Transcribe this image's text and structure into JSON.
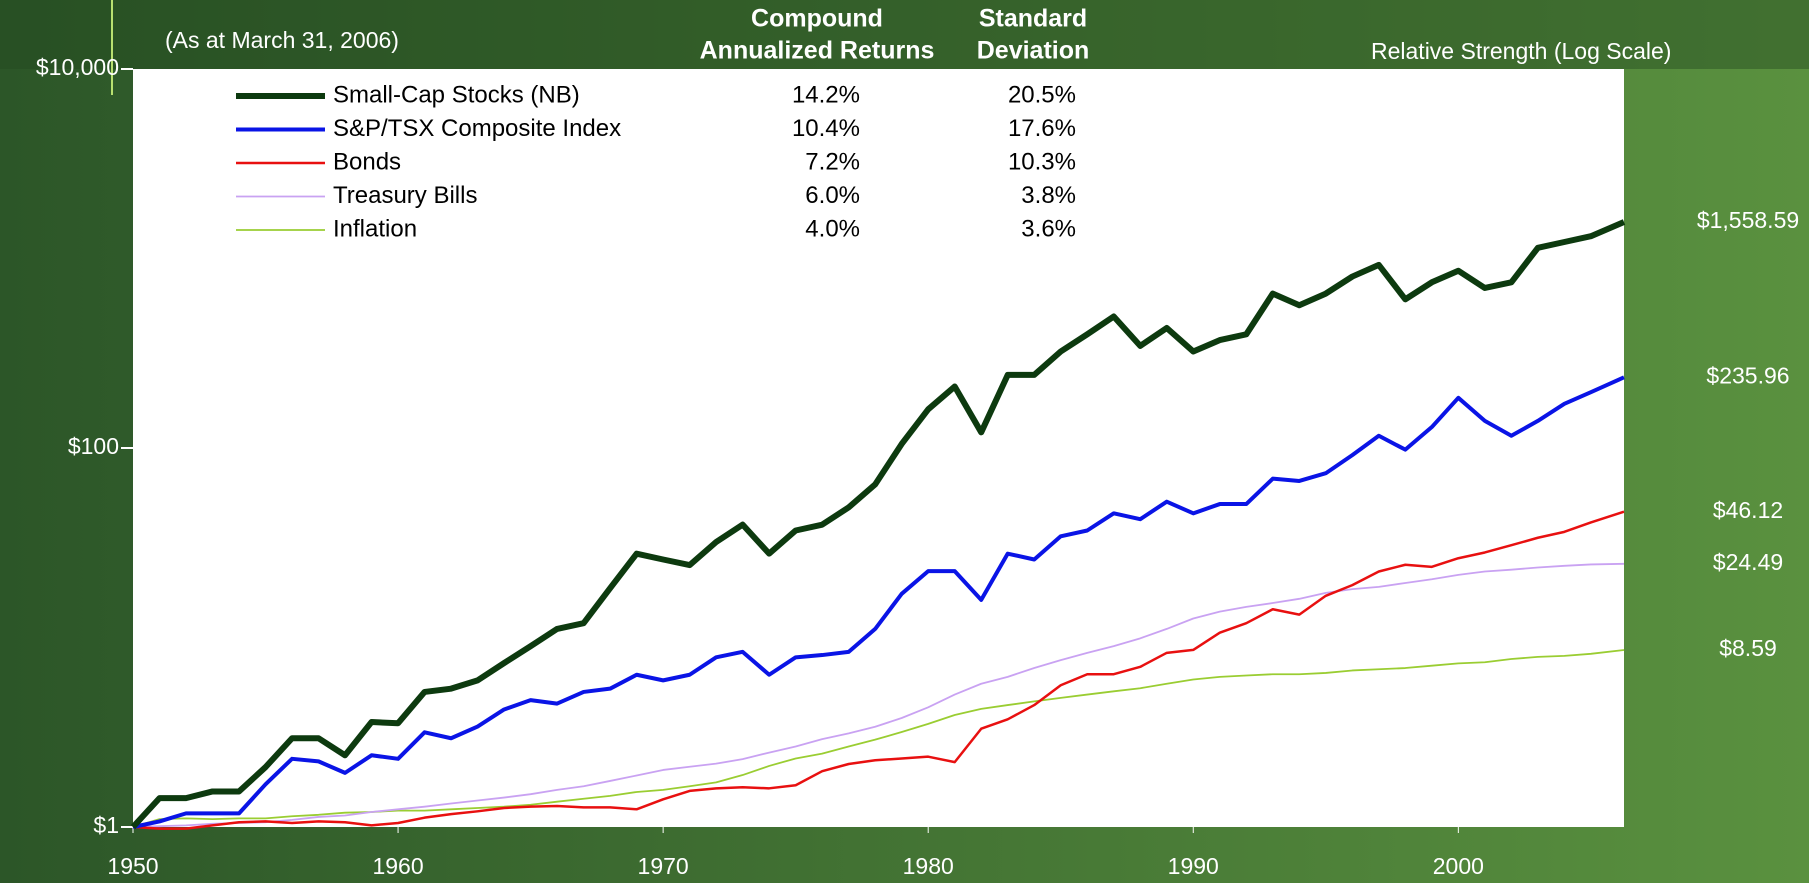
{
  "chart_data": {
    "type": "line",
    "log_scale": true,
    "subtitle": "(As at March 31, 2006)",
    "axis_note": "Relative Strength (Log Scale)",
    "return_header": [
      "Compound",
      "Annualized Returns"
    ],
    "std_header": [
      "Standard",
      "Deviation"
    ],
    "xlim": [
      1950,
      2006.25
    ],
    "xticks": [
      1950,
      1960,
      1970,
      1980,
      1990,
      2000
    ],
    "ylim": [
      1,
      10000
    ],
    "yticks": [
      {
        "value": 1,
        "label": "$1"
      },
      {
        "value": 100,
        "label": "$100"
      },
      {
        "value": 10000,
        "label": "$10,000"
      }
    ],
    "x": [
      1950,
      1951,
      1952,
      1953,
      1954,
      1955,
      1956,
      1957,
      1958,
      1959,
      1960,
      1961,
      1962,
      1963,
      1964,
      1965,
      1966,
      1967,
      1968,
      1969,
      1970,
      1971,
      1972,
      1973,
      1974,
      1975,
      1976,
      1977,
      1978,
      1979,
      1980,
      1981,
      1982,
      1983,
      1984,
      1985,
      1986,
      1987,
      1988,
      1989,
      1990,
      1991,
      1992,
      1993,
      1994,
      1995,
      1996,
      1997,
      1998,
      1999,
      2000,
      2001,
      2002,
      2003,
      2004,
      2005,
      2006.25
    ],
    "series": [
      {
        "name": "Small-Cap Stocks (NB)",
        "color": "#0d3a0f",
        "width": 6,
        "return": "14.2%",
        "std_dev": "20.5%",
        "values": [
          1,
          1.42,
          1.42,
          1.54,
          1.54,
          2.07,
          2.94,
          2.94,
          2.39,
          3.58,
          3.53,
          5.16,
          5.37,
          5.94,
          7.33,
          9.0,
          11.1,
          11.9,
          18.2,
          27.7,
          25.8,
          24.1,
          31.9,
          39.4,
          27.7,
          36.7,
          39.4,
          48.6,
          64.3,
          105,
          160,
          211,
          121,
          243,
          243,
          323,
          398,
          494,
          346,
          430,
          323,
          371,
          398,
          653,
          567,
          653,
          803,
          925,
          609,
          749,
          862,
          699,
          749,
          1138,
          1222,
          1311,
          1558.59
        ],
        "value_labels": [
          null,
          null,
          null,
          null,
          null,
          null,
          null,
          null,
          null,
          null,
          null,
          null,
          null,
          null,
          null,
          null,
          null,
          null,
          null,
          null,
          null,
          null,
          null,
          null,
          null,
          null,
          null,
          null,
          null,
          null,
          null,
          null,
          null,
          null,
          null,
          null,
          null,
          null,
          null,
          null,
          null,
          null,
          null,
          null,
          null,
          null,
          null,
          null,
          null,
          null,
          null,
          null,
          null,
          null,
          null,
          null,
          "$1,558.59"
        ]
      },
      {
        "name": "S&P/TSX Composite Index",
        "color": "#0a14e6",
        "width": 4,
        "return": "10.4%",
        "std_dev": "17.6%",
        "values": [
          1,
          1.07,
          1.18,
          1.18,
          1.18,
          1.68,
          2.29,
          2.22,
          1.93,
          2.39,
          2.29,
          3.16,
          2.94,
          3.39,
          4.17,
          4.67,
          4.48,
          5.16,
          5.37,
          6.36,
          5.94,
          6.36,
          7.86,
          8.4,
          6.36,
          7.86,
          8.08,
          8.4,
          11.1,
          17.0,
          22.4,
          22.4,
          15.8,
          27.7,
          25.8,
          34.2,
          36.7,
          45.2,
          42.1,
          52.1,
          45.2,
          50.6,
          50.6,
          68.9,
          67.0,
          73.6,
          91.7,
          116,
          98,
          129,
          184,
          139,
          116,
          139,
          171,
          197,
          235.96
        ],
        "value_labels": [
          null,
          null,
          null,
          null,
          null,
          null,
          null,
          null,
          null,
          null,
          null,
          null,
          null,
          null,
          null,
          null,
          null,
          null,
          null,
          null,
          null,
          null,
          null,
          null,
          null,
          null,
          null,
          null,
          null,
          null,
          null,
          null,
          null,
          null,
          null,
          null,
          null,
          null,
          null,
          null,
          null,
          null,
          null,
          null,
          null,
          null,
          null,
          null,
          null,
          null,
          null,
          null,
          null,
          null,
          null,
          null,
          "$235.96"
        ]
      },
      {
        "name": "Bonds",
        "color": "#e81010",
        "width": 2.5,
        "return": "7.2%",
        "std_dev": "10.3%",
        "values": [
          1.0,
          0.98,
          0.98,
          1.02,
          1.06,
          1.07,
          1.05,
          1.07,
          1.06,
          1.02,
          1.05,
          1.12,
          1.17,
          1.21,
          1.26,
          1.28,
          1.29,
          1.27,
          1.27,
          1.24,
          1.4,
          1.55,
          1.6,
          1.62,
          1.6,
          1.66,
          1.97,
          2.15,
          2.25,
          2.3,
          2.35,
          2.2,
          3.3,
          3.7,
          4.4,
          5.6,
          6.4,
          6.4,
          7.0,
          8.3,
          8.6,
          10.6,
          11.9,
          14.1,
          13.2,
          16.6,
          18.9,
          22.3,
          24.2,
          23.6,
          26.2,
          28.1,
          30.7,
          33.6,
          36.1,
          40.5,
          46.12
        ],
        "value_labels": [
          null,
          null,
          null,
          null,
          null,
          null,
          null,
          null,
          null,
          null,
          null,
          null,
          null,
          null,
          null,
          null,
          null,
          null,
          null,
          null,
          null,
          null,
          null,
          null,
          null,
          null,
          null,
          null,
          null,
          null,
          null,
          null,
          null,
          null,
          null,
          null,
          null,
          null,
          null,
          null,
          null,
          null,
          null,
          null,
          null,
          null,
          null,
          null,
          null,
          null,
          null,
          null,
          null,
          null,
          null,
          null,
          "$46.12"
        ]
      },
      {
        "name": "Treasury Bills",
        "color": "#c9a2f2",
        "width": 1.8,
        "return": "6.0%",
        "std_dev": "3.8%",
        "values": [
          1.0,
          1.01,
          1.02,
          1.04,
          1.05,
          1.06,
          1.09,
          1.13,
          1.15,
          1.2,
          1.24,
          1.28,
          1.33,
          1.38,
          1.43,
          1.49,
          1.57,
          1.64,
          1.75,
          1.87,
          2.0,
          2.08,
          2.16,
          2.28,
          2.47,
          2.66,
          2.91,
          3.12,
          3.38,
          3.76,
          4.28,
          5.0,
          5.7,
          6.2,
          6.9,
          7.6,
          8.3,
          9.0,
          9.9,
          11.1,
          12.6,
          13.7,
          14.5,
          15.2,
          16.0,
          17.2,
          18.0,
          18.5,
          19.4,
          20.3,
          21.4,
          22.3,
          22.8,
          23.4,
          23.9,
          24.3,
          24.49
        ],
        "value_labels": [
          null,
          null,
          null,
          null,
          null,
          null,
          null,
          null,
          null,
          null,
          null,
          null,
          null,
          null,
          null,
          null,
          null,
          null,
          null,
          null,
          null,
          null,
          null,
          null,
          null,
          null,
          null,
          null,
          null,
          null,
          null,
          null,
          null,
          null,
          null,
          null,
          null,
          null,
          null,
          null,
          null,
          null,
          null,
          null,
          null,
          null,
          null,
          null,
          null,
          null,
          null,
          null,
          null,
          null,
          null,
          null,
          "$24.49"
        ]
      },
      {
        "name": "Inflation",
        "color": "#9acd32",
        "width": 1.8,
        "return": "4.0%",
        "std_dev": "3.6%",
        "values": [
          1.0,
          1.1,
          1.11,
          1.1,
          1.11,
          1.11,
          1.14,
          1.16,
          1.19,
          1.2,
          1.22,
          1.22,
          1.24,
          1.26,
          1.28,
          1.31,
          1.36,
          1.41,
          1.46,
          1.53,
          1.57,
          1.64,
          1.72,
          1.88,
          2.1,
          2.3,
          2.44,
          2.66,
          2.89,
          3.17,
          3.5,
          3.9,
          4.2,
          4.4,
          4.6,
          4.8,
          5.0,
          5.2,
          5.4,
          5.7,
          6.0,
          6.2,
          6.3,
          6.4,
          6.4,
          6.5,
          6.7,
          6.8,
          6.9,
          7.1,
          7.3,
          7.4,
          7.7,
          7.9,
          8.0,
          8.2,
          8.59
        ],
        "value_labels": [
          null,
          null,
          null,
          null,
          null,
          null,
          null,
          null,
          null,
          null,
          null,
          null,
          null,
          null,
          null,
          null,
          null,
          null,
          null,
          null,
          null,
          null,
          null,
          null,
          null,
          null,
          null,
          null,
          null,
          null,
          null,
          null,
          null,
          null,
          null,
          null,
          null,
          null,
          null,
          null,
          null,
          null,
          null,
          null,
          null,
          null,
          null,
          null,
          null,
          null,
          null,
          null,
          null,
          null,
          null,
          null,
          "$8.59"
        ]
      }
    ]
  }
}
